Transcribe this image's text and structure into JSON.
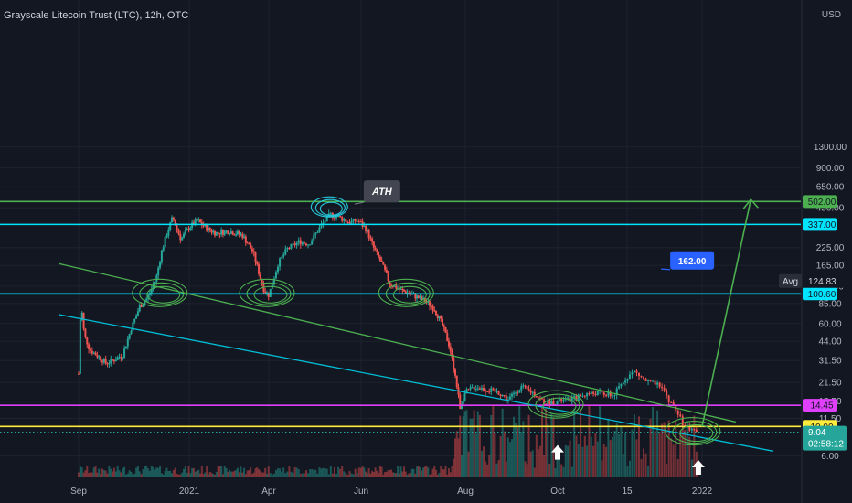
{
  "chart_data": {
    "type": "candlestick",
    "title": "Grayscale Litecoin Trust (LTC), 12h, OTC",
    "currency": "USD",
    "scale": "log",
    "ylim": [
      5,
      1300
    ],
    "y_ticks": [
      {
        "v": 1300,
        "label": "1300.00"
      },
      {
        "v": 900,
        "label": "900.00"
      },
      {
        "v": 650,
        "label": "650.00"
      },
      {
        "v": 450,
        "label": "450.00"
      },
      {
        "v": 225,
        "label": "225.00"
      },
      {
        "v": 165,
        "label": "165.00"
      },
      {
        "v": 115,
        "label": "115.00"
      },
      {
        "v": 85,
        "label": "85.00"
      },
      {
        "v": 60,
        "label": "60.00"
      },
      {
        "v": 44,
        "label": "44.00"
      },
      {
        "v": 31.5,
        "label": "31.50"
      },
      {
        "v": 21.5,
        "label": "21.50"
      },
      {
        "v": 15.5,
        "label": "15.50"
      },
      {
        "v": 11.5,
        "label": "11.50"
      },
      {
        "v": 6,
        "label": "6.00"
      }
    ],
    "x_ticks": [
      {
        "t": 0,
        "label": "Sep"
      },
      {
        "t": 4,
        "label": "2021"
      },
      {
        "t": 7,
        "label": "Apr"
      },
      {
        "t": 10,
        "label": "Jun"
      },
      {
        "t": 14,
        "label": "Aug"
      },
      {
        "t": 17,
        "label": "Oct"
      },
      {
        "t": 19,
        "label": "15"
      },
      {
        "t": 21,
        "label": "2022"
      }
    ],
    "price_series": [
      [
        0,
        25
      ],
      [
        0.05,
        60
      ],
      [
        0.1,
        80
      ],
      [
        0.2,
        50
      ],
      [
        0.4,
        38
      ],
      [
        0.7,
        34
      ],
      [
        1,
        30
      ],
      [
        1.3,
        32
      ],
      [
        1.6,
        35
      ],
      [
        1.9,
        55
      ],
      [
        2.2,
        80
      ],
      [
        2.5,
        95
      ],
      [
        2.8,
        130
      ],
      [
        3.0,
        210
      ],
      [
        3.2,
        290
      ],
      [
        3.4,
        380
      ],
      [
        3.7,
        260
      ],
      [
        4.0,
        320
      ],
      [
        4.3,
        360
      ],
      [
        4.7,
        310
      ],
      [
        5.0,
        290
      ],
      [
        5.5,
        300
      ],
      [
        6.0,
        280
      ],
      [
        6.4,
        210
      ],
      [
        6.8,
        110
      ],
      [
        7.0,
        98
      ],
      [
        7.3,
        170
      ],
      [
        7.6,
        220
      ],
      [
        8.0,
        250
      ],
      [
        8.3,
        240
      ],
      [
        8.7,
        330
      ],
      [
        9.0,
        400
      ],
      [
        9.3,
        380
      ],
      [
        9.6,
        350
      ],
      [
        9.9,
        360
      ],
      [
        10.2,
        310
      ],
      [
        10.5,
        220
      ],
      [
        10.8,
        170
      ],
      [
        11.1,
        120
      ],
      [
        11.5,
        108
      ],
      [
        11.8,
        102
      ],
      [
        12.1,
        96
      ],
      [
        12.5,
        88
      ],
      [
        12.8,
        78
      ],
      [
        13.1,
        60
      ],
      [
        13.4,
        40
      ],
      [
        13.6,
        25
      ],
      [
        13.8,
        14
      ],
      [
        14.0,
        18
      ],
      [
        14.3,
        20
      ],
      [
        14.7,
        19
      ],
      [
        15.1,
        18
      ],
      [
        15.4,
        16
      ],
      [
        15.8,
        20
      ],
      [
        16.2,
        18
      ],
      [
        16.6,
        15
      ],
      [
        17.0,
        15.5
      ],
      [
        17.4,
        16
      ],
      [
        17.8,
        17.5
      ],
      [
        18.2,
        18
      ],
      [
        18.6,
        17
      ],
      [
        19.0,
        24
      ],
      [
        19.2,
        26
      ],
      [
        19.5,
        22
      ],
      [
        19.9,
        20
      ],
      [
        20.1,
        16
      ],
      [
        20.3,
        13
      ],
      [
        20.5,
        10.5
      ],
      [
        20.7,
        9.3
      ],
      [
        20.85,
        9.04
      ]
    ],
    "horizontal_levels": [
      {
        "value": 502.0,
        "label": "502.00",
        "color": "#4caf50"
      },
      {
        "value": 337.0,
        "label": "337.00",
        "color": "#00e5ff"
      },
      {
        "value": 100.6,
        "label": "100.60",
        "color": "#00e5ff"
      },
      {
        "value": 14.45,
        "label": "14.45",
        "color": "#e040fb"
      },
      {
        "value": 10.0,
        "label": "10.00",
        "color": "#ffeb3b"
      }
    ],
    "current_price": {
      "value": 9.04,
      "label": "9.04",
      "countdown": "02:58:12",
      "color": "#26a69a"
    },
    "avg": {
      "label": "Avg",
      "value": 124.83,
      "text": "124.83"
    },
    "annotations": [
      {
        "type": "callout",
        "text": "ATH",
        "color": "#434651"
      },
      {
        "type": "callout",
        "text": "162.00",
        "color": "#2962ff"
      }
    ],
    "trendlines": [
      {
        "color": "#4caf50",
        "from": [
          -0.7,
          170
        ],
        "to": [
          21.9,
          10.8
        ]
      },
      {
        "color": "#00bcd4",
        "from": [
          -0.7,
          70
        ],
        "to": [
          22.9,
          6.5
        ]
      }
    ],
    "target_arrow": {
      "color": "#4caf50",
      "from": [
        21.0,
        10.0
      ],
      "to": [
        22.3,
        520
      ]
    },
    "colors": {
      "background": "#131722",
      "up": "#26a69a",
      "down": "#ef5350",
      "axis_text": "#b2b5be",
      "grid": "#1e222d"
    }
  }
}
